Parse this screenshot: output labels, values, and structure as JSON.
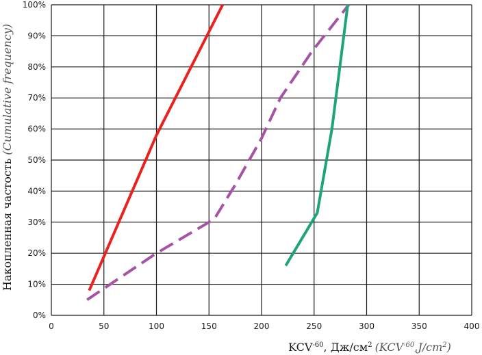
{
  "chart_data": {
    "type": "line",
    "xlabel_main": "KCV",
    "xlabel_sup": "-60",
    "xlabel_units": ", Дж/см",
    "xlabel_units_sup": "2",
    "xlabel_alt_open": "(KCV",
    "xlabel_alt_sup": "-60",
    "xlabel_alt_units": ",J/cm",
    "xlabel_alt_units_sup": "2",
    "xlabel_alt_close": ")",
    "ylabel_main": "Накопленная частость",
    "ylabel_alt": "(Cumulative frequency)",
    "xlim": [
      0,
      400
    ],
    "ylim": [
      0,
      100
    ],
    "x_ticks": [
      "0",
      "50",
      "100",
      "150",
      "200",
      "250",
      "300",
      "350",
      "400"
    ],
    "y_ticks": [
      "0%",
      "10%",
      "20%",
      "30%",
      "40%",
      "50%",
      "60%",
      "70%",
      "80%",
      "90%",
      "100%"
    ],
    "grid": true,
    "series": [
      {
        "color": "#e8231f",
        "dash": false,
        "points": [
          [
            36,
            8
          ],
          [
            100,
            58
          ],
          [
            163,
            100
          ]
        ]
      },
      {
        "color": "#a653a6",
        "dash": true,
        "points": [
          [
            34,
            5
          ],
          [
            100,
            20
          ],
          [
            155,
            31
          ],
          [
            175,
            42
          ],
          [
            200,
            57
          ],
          [
            218,
            70
          ],
          [
            248,
            85
          ],
          [
            283,
            100
          ]
        ]
      },
      {
        "color": "#1ea37a",
        "dash": false,
        "points": [
          [
            223,
            16
          ],
          [
            253,
            33
          ],
          [
            267,
            60
          ],
          [
            282,
            100
          ]
        ]
      }
    ]
  }
}
